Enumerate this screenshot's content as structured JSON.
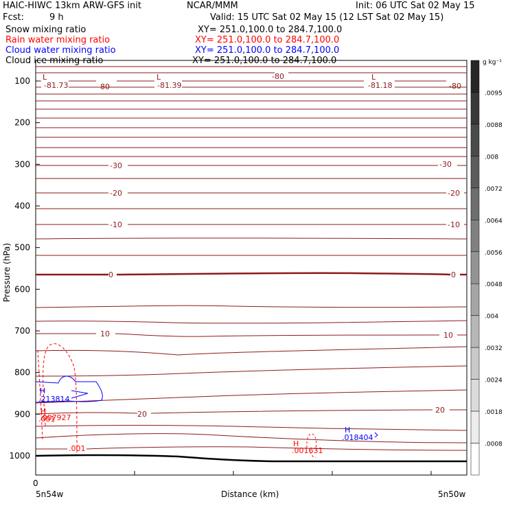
{
  "header": {
    "model": "HAIC-HIWC 13km ARW-GFS init",
    "org": "NCAR/MMM",
    "init": "Init: 06 UTC Sat 02 May 15",
    "fcst_label": "Fcst:",
    "fcst_value": "9 h",
    "valid": "Valid: 15 UTC Sat 02 May 15 (12 LST Sat 02 May 15)"
  },
  "fields": [
    {
      "name": "Snow mixing ratio",
      "xy": "XY= 251.0,100.0 to 284.7,100.0",
      "color": "#000000"
    },
    {
      "name": "Rain water mixing ratio",
      "xy": "XY= 251.0,100.0 to 284.7,100.0",
      "color": "#ff0000"
    },
    {
      "name": "Cloud water mixing ratio",
      "xy": "XY= 251.0,100.0 to 284.7,100.0",
      "color": "#0000ff"
    },
    {
      "name": "Cloud ice mixing ratio",
      "xy": "XY= 251.0,100.0 to 284.7,100.0",
      "color": "#000000"
    }
  ],
  "chart_data": {
    "type": "cross-section",
    "ylabel": "Pressure (hPa)",
    "xlabel": "Distance (km)",
    "yticks": [
      100,
      200,
      300,
      400,
      500,
      600,
      700,
      800,
      900,
      1000
    ],
    "ylim": [
      1100,
      50
    ],
    "x_origin_label": "0",
    "x_left_label": "5n54w",
    "x_right_label": "5n50w",
    "colorbar": {
      "unit": "g kg⁻¹",
      "labels": [
        ".0095",
        ".0088",
        ".008",
        ".0072",
        ".0064",
        ".0056",
        ".0048",
        ".004",
        ".0032",
        ".0024",
        ".0018",
        ".0008"
      ]
    },
    "temperature_labels": [
      {
        "text": "-81.73",
        "color": "#8b1a1a"
      },
      {
        "text": "-80",
        "color": "#8b1a1a"
      },
      {
        "text": "-81.39",
        "color": "#8b1a1a"
      },
      {
        "text": "-80",
        "color": "#8b1a1a"
      },
      {
        "text": "-81.18",
        "color": "#8b1a1a"
      },
      {
        "text": "-80",
        "color": "#8b1a1a"
      },
      {
        "text": "-30",
        "color": "#8b1a1a"
      },
      {
        "text": "-30",
        "color": "#8b1a1a"
      },
      {
        "text": "-20",
        "color": "#8b1a1a"
      },
      {
        "text": "-20",
        "color": "#8b1a1a"
      },
      {
        "text": "-10",
        "color": "#8b1a1a"
      },
      {
        "text": "-10",
        "color": "#8b1a1a"
      },
      {
        "text": "0",
        "color": "#8b1a1a"
      },
      {
        "text": "0",
        "color": "#8b1a1a"
      },
      {
        "text": "10",
        "color": "#8b1a1a"
      },
      {
        "text": "10",
        "color": "#8b1a1a"
      },
      {
        "text": "20",
        "color": "#8b1a1a"
      },
      {
        "text": "20",
        "color": "#8b1a1a"
      }
    ],
    "markers": [
      {
        "text": "L",
        "color": "#8b1a1a"
      },
      {
        "text": "L",
        "color": "#8b1a1a"
      },
      {
        "text": "L",
        "color": "#8b1a1a"
      },
      {
        "text": "H",
        "color": "#0000ff"
      },
      {
        "text": ".213814",
        "color": "#0000ff"
      },
      {
        "text": "H",
        "color": "#ff0000"
      },
      {
        "text": ".001",
        "color": "#ff0000"
      },
      {
        "text": ".007927",
        "color": "#ff0000"
      },
      {
        "text": ".001",
        "color": "#ff0000"
      },
      {
        "text": "H",
        "color": "#ff0000"
      },
      {
        "text": ".001631",
        "color": "#ff0000"
      },
      {
        "text": "H",
        "color": "#0000ff"
      },
      {
        "text": ".018404",
        "color": "#0000ff"
      }
    ]
  }
}
